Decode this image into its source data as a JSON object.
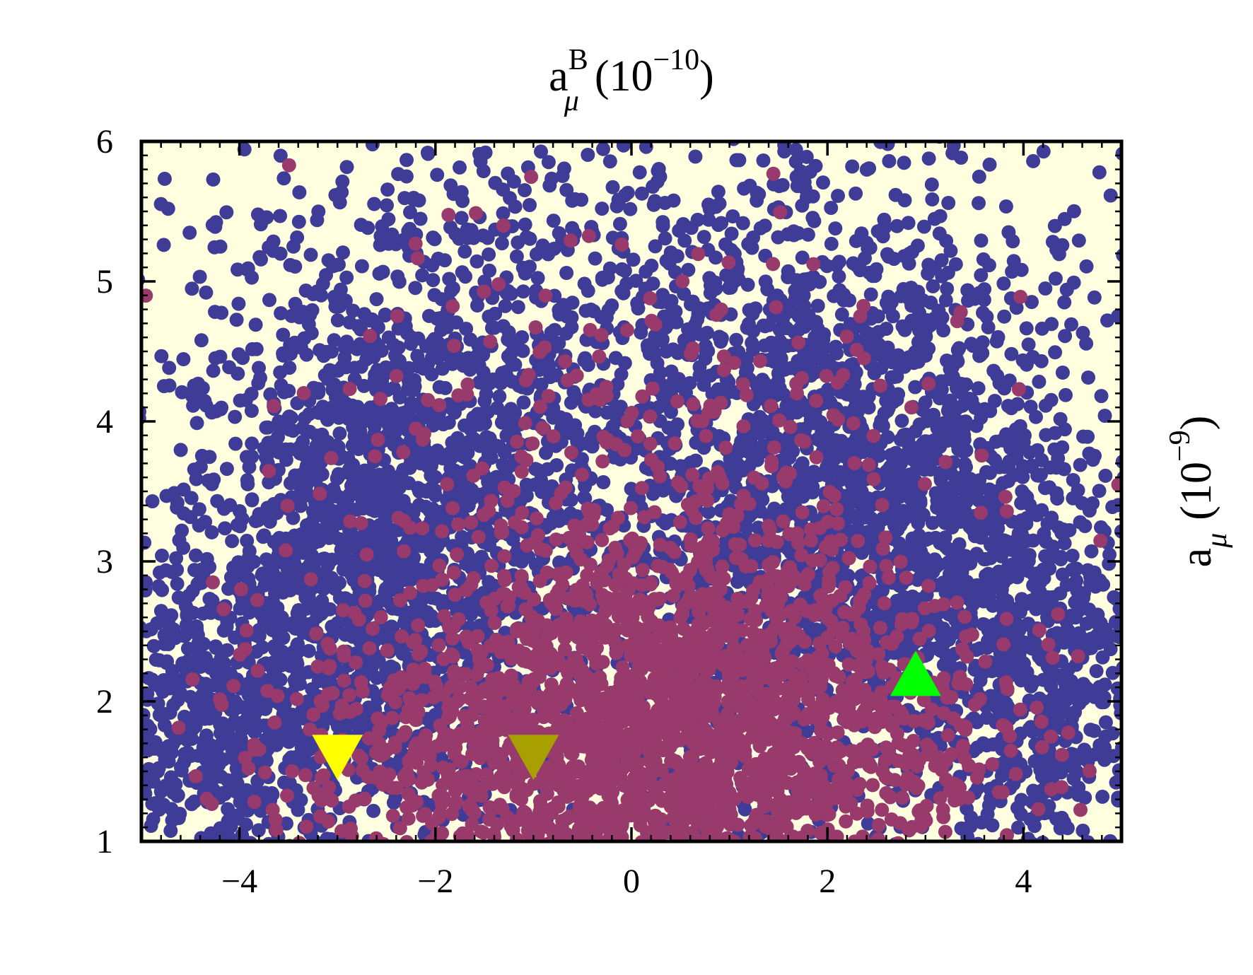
{
  "chart_data": {
    "type": "scatter",
    "title": "",
    "xlabel": {
      "base": "a",
      "sup": "B",
      "sub": "μ",
      "unit": "(10",
      "unit_exp": "−10",
      "unit_close": ")"
    },
    "ylabel": {
      "base": "a",
      "sub": "μ",
      "unit": "(10",
      "unit_exp": "−9",
      "unit_close": ")"
    },
    "xlim": [
      -5,
      5
    ],
    "ylim": [
      1,
      6
    ],
    "xticks": [
      {
        "value": -4,
        "label": "−4"
      },
      {
        "value": -2,
        "label": "−2"
      },
      {
        "value": 0,
        "label": "0"
      },
      {
        "value": 2,
        "label": "2"
      },
      {
        "value": 4,
        "label": "4"
      }
    ],
    "yticks": [
      {
        "value": 1,
        "label": "1"
      },
      {
        "value": 2,
        "label": "2"
      },
      {
        "value": 3,
        "label": "3"
      },
      {
        "value": 4,
        "label": "4"
      },
      {
        "value": 5,
        "label": "5"
      },
      {
        "value": 6,
        "label": "6"
      }
    ],
    "plot_background": "#ffffe0",
    "series": [
      {
        "color": "#3e3c96",
        "marker": "circle",
        "clusters": [
          {
            "cx": -2.5,
            "cy": 3.0,
            "sx": 1.1,
            "sy": 1.0,
            "n": 1700
          },
          {
            "cx": 2.3,
            "cy": 3.2,
            "sx": 1.2,
            "sy": 1.0,
            "n": 1700
          },
          {
            "cx": -4.0,
            "cy": 1.8,
            "sx": 0.7,
            "sy": 0.6,
            "n": 600
          },
          {
            "cx": 4.2,
            "cy": 2.0,
            "sx": 0.7,
            "sy": 0.8,
            "n": 600
          },
          {
            "cx": 0.0,
            "cy": 4.5,
            "sx": 2.6,
            "sy": 1.0,
            "n": 1300
          }
        ]
      },
      {
        "color": "#993a6c",
        "marker": "circle",
        "clusters": [
          {
            "cx": -0.8,
            "cy": 1.7,
            "sx": 1.3,
            "sy": 0.6,
            "n": 1100
          },
          {
            "cx": 1.3,
            "cy": 1.8,
            "sx": 1.2,
            "sy": 0.7,
            "n": 1100
          },
          {
            "cx": 0.2,
            "cy": 3.0,
            "sx": 1.6,
            "sy": 0.9,
            "n": 400
          },
          {
            "cx": 0.0,
            "cy": 4.3,
            "sx": 2.0,
            "sy": 0.8,
            "n": 60
          }
        ]
      }
    ],
    "markers": [
      {
        "shape": "triangle-down",
        "color": "#ffff00",
        "x": -3.0,
        "y": 1.6
      },
      {
        "shape": "triangle-down",
        "color": "#a8a000",
        "x": -1.0,
        "y": 1.6
      },
      {
        "shape": "triangle-up",
        "color": "#00ff00",
        "x": 2.9,
        "y": 2.2
      }
    ]
  }
}
